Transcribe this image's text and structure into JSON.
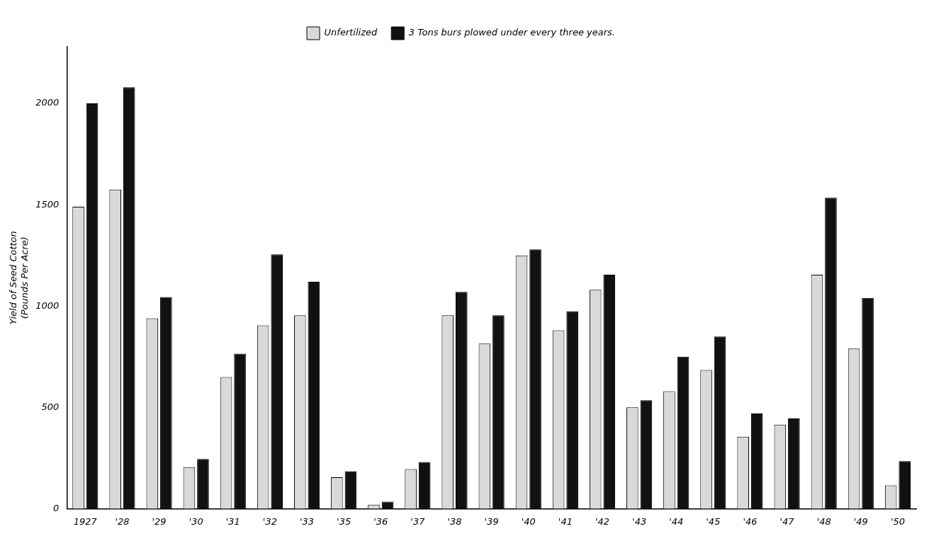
{
  "chart_data": {
    "type": "bar",
    "ylabel": "Yield of Seed Cotton\n(Pounds Per Acre)",
    "categories": [
      "1927",
      "'28",
      "'29",
      "'30",
      "'31",
      "'32",
      "'33",
      "'35",
      "'36",
      "'37",
      "'38",
      "'39",
      "'40",
      "'41",
      "'42",
      "'43",
      "'44",
      "'45",
      "'46",
      "'47",
      "'48",
      "'49",
      "'50"
    ],
    "series": [
      {
        "name": "Unfertilized",
        "color": "#d9d9d9",
        "values": [
          1490,
          1575,
          940,
          205,
          650,
          905,
          955,
          155,
          20,
          195,
          955,
          815,
          1250,
          880,
          1080,
          500,
          580,
          685,
          355,
          415,
          1155,
          790,
          115
        ]
      },
      {
        "name": "3 Tons burs plowed under every three years.",
        "color": "#111111",
        "values": [
          2000,
          2080,
          1045,
          245,
          765,
          1255,
          1120,
          185,
          35,
          230,
          1070,
          955,
          1280,
          975,
          1155,
          535,
          750,
          850,
          470,
          445,
          1535,
          1040,
          235
        ]
      }
    ],
    "ylim": [
      0,
      2280
    ],
    "yticks": [
      0,
      500,
      1000,
      1500,
      2000
    ],
    "grid": false,
    "legend": "top"
  }
}
